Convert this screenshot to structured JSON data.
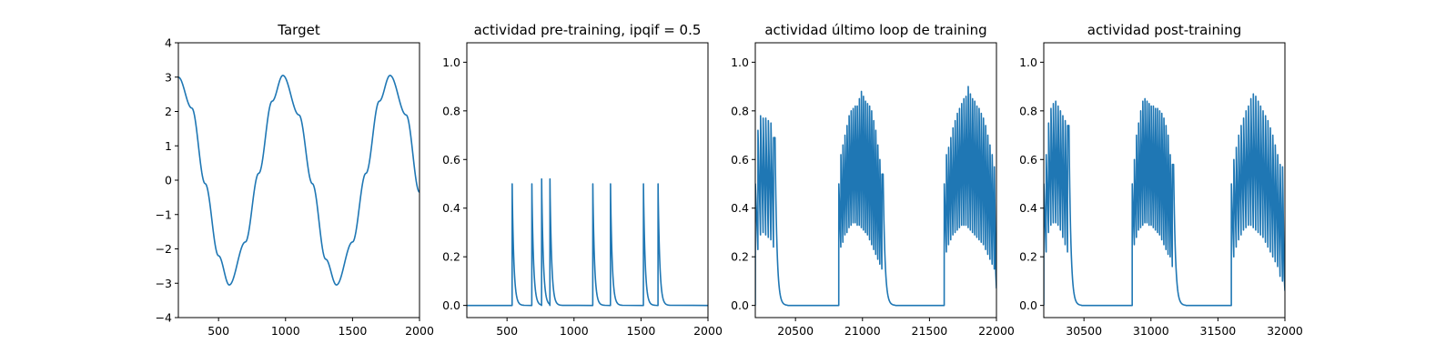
{
  "chart_data": [
    {
      "type": "line",
      "title": "Target",
      "xlabel": "",
      "ylabel": "",
      "xlim": [
        200,
        2000
      ],
      "ylim": [
        -4,
        4
      ],
      "xticks": [
        500,
        1000,
        1500,
        2000
      ],
      "xtick_labels": [
        "500",
        "1000",
        "1500",
        "2000"
      ],
      "yticks": [
        -4,
        -3,
        -2,
        -1,
        0,
        1,
        2,
        3,
        4
      ],
      "ytick_labels": [
        "−4",
        "−3",
        "−2",
        "−1",
        "0",
        "1",
        "2",
        "3",
        "4"
      ],
      "grid": false,
      "color": "#1f77b4",
      "series": [
        {
          "x": [
            200,
            300,
            400,
            500,
            580,
            700,
            800,
            900,
            980,
            1100,
            1200,
            1300,
            1380,
            1500,
            1600,
            1700,
            1780,
            1900,
            2000
          ],
          "y": [
            3.0,
            2.1,
            -0.1,
            -2.2,
            -3.05,
            -1.8,
            0.2,
            2.3,
            3.05,
            1.9,
            -0.1,
            -2.3,
            -3.05,
            -1.8,
            0.2,
            2.3,
            3.05,
            1.9,
            -0.35
          ]
        }
      ]
    },
    {
      "type": "line",
      "title": "actividad pre-training, ipqif = 0.5",
      "xlabel": "",
      "ylabel": "",
      "xlim": [
        200,
        2000
      ],
      "ylim": [
        -0.05,
        1.08
      ],
      "xticks": [
        500,
        1000,
        1500,
        2000
      ],
      "xtick_labels": [
        "500",
        "1000",
        "1500",
        "2000"
      ],
      "yticks": [
        0.0,
        0.2,
        0.4,
        0.6,
        0.8,
        1.0
      ],
      "ytick_labels": [
        "0.0",
        "0.2",
        "0.4",
        "0.6",
        "0.8",
        "1.0"
      ],
      "grid": false,
      "color": "#1f77b4",
      "spikes": [
        {
          "t": 538,
          "peak": 0.5
        },
        {
          "t": 685,
          "peak": 0.5
        },
        {
          "t": 758,
          "peak": 0.52
        },
        {
          "t": 820,
          "peak": 0.52
        },
        {
          "t": 1140,
          "peak": 0.5
        },
        {
          "t": 1272,
          "peak": 0.5
        },
        {
          "t": 1518,
          "peak": 0.5
        },
        {
          "t": 1627,
          "peak": 0.5
        }
      ]
    },
    {
      "type": "line",
      "title": "actividad último loop de training",
      "xlabel": "",
      "ylabel": "",
      "xlim": [
        20200,
        22000
      ],
      "ylim": [
        -0.05,
        1.08
      ],
      "xticks": [
        20500,
        21000,
        21500,
        22000
      ],
      "xtick_labels": [
        "20500",
        "21000",
        "21500",
        "22000"
      ],
      "yticks": [
        0.0,
        0.2,
        0.4,
        0.6,
        0.8,
        1.0
      ],
      "ytick_labels": [
        "0.0",
        "0.2",
        "0.4",
        "0.6",
        "0.8",
        "1.0"
      ],
      "grid": false,
      "color": "#1f77b4",
      "bursts": [
        {
          "start": 20200,
          "end": 20355,
          "peaks": [
            0.5,
            0.72,
            0.78,
            0.77,
            0.77,
            0.76,
            0.75,
            0.69
          ],
          "troughs": [
            0.0,
            0.23,
            0.29,
            0.3,
            0.29,
            0.28,
            0.27,
            0.24
          ]
        },
        {
          "start": 20823,
          "end": 21160,
          "peaks": [
            0.5,
            0.62,
            0.66,
            0.7,
            0.74,
            0.78,
            0.8,
            0.81,
            0.82,
            0.82,
            0.85,
            0.88,
            0.86,
            0.84,
            0.83,
            0.82,
            0.8,
            0.76,
            0.72,
            0.66,
            0.6,
            0.54
          ],
          "troughs": [
            0.22,
            0.24,
            0.26,
            0.29,
            0.3,
            0.32,
            0.33,
            0.34,
            0.34,
            0.33,
            0.33,
            0.32,
            0.31,
            0.3,
            0.29,
            0.27,
            0.25,
            0.23,
            0.21,
            0.19,
            0.17,
            0.15
          ]
        },
        {
          "start": 21610,
          "end": 22000,
          "peaks": [
            0.5,
            0.62,
            0.65,
            0.69,
            0.73,
            0.76,
            0.79,
            0.81,
            0.83,
            0.85,
            0.86,
            0.9,
            0.87,
            0.85,
            0.84,
            0.82,
            0.81,
            0.79,
            0.77,
            0.74,
            0.7,
            0.66,
            0.62,
            0.57
          ],
          "troughs": [
            0.2,
            0.22,
            0.25,
            0.27,
            0.29,
            0.3,
            0.31,
            0.32,
            0.33,
            0.33,
            0.33,
            0.32,
            0.31,
            0.3,
            0.29,
            0.28,
            0.27,
            0.26,
            0.25,
            0.23,
            0.21,
            0.19,
            0.17,
            0.15
          ]
        }
      ],
      "final_value": 0.07
    },
    {
      "type": "line",
      "title": "actividad post-training",
      "xlabel": "",
      "ylabel": "",
      "xlim": [
        30200,
        32000
      ],
      "ylim": [
        -0.05,
        1.08
      ],
      "xticks": [
        30500,
        31000,
        31500,
        32000
      ],
      "xtick_labels": [
        "30500",
        "31000",
        "31500",
        "32000"
      ],
      "yticks": [
        0.0,
        0.2,
        0.4,
        0.6,
        0.8,
        1.0
      ],
      "ytick_labels": [
        "0.0",
        "0.2",
        "0.4",
        "0.6",
        "0.8",
        "1.0"
      ],
      "grid": false,
      "color": "#1f77b4",
      "bursts": [
        {
          "start": 30200,
          "end": 30395,
          "peaks": [
            0.5,
            0.62,
            0.75,
            0.81,
            0.83,
            0.84,
            0.82,
            0.8,
            0.78,
            0.76,
            0.74
          ],
          "troughs": [
            0.0,
            0.22,
            0.3,
            0.33,
            0.34,
            0.34,
            0.33,
            0.31,
            0.28,
            0.25,
            0.22
          ]
        },
        {
          "start": 30860,
          "end": 31175,
          "peaks": [
            0.5,
            0.6,
            0.7,
            0.75,
            0.8,
            0.84,
            0.85,
            0.84,
            0.83,
            0.82,
            0.82,
            0.81,
            0.81,
            0.8,
            0.79,
            0.77,
            0.74,
            0.7,
            0.62,
            0.58
          ],
          "troughs": [
            0.22,
            0.25,
            0.28,
            0.31,
            0.32,
            0.33,
            0.34,
            0.34,
            0.33,
            0.33,
            0.32,
            0.31,
            0.3,
            0.29,
            0.27,
            0.25,
            0.23,
            0.21,
            0.2,
            0.16
          ]
        },
        {
          "start": 31600,
          "end": 32000,
          "peaks": [
            0.5,
            0.6,
            0.65,
            0.7,
            0.74,
            0.77,
            0.8,
            0.82,
            0.85,
            0.87,
            0.86,
            0.84,
            0.82,
            0.8,
            0.78,
            0.76,
            0.73,
            0.7,
            0.66,
            0.62,
            0.58,
            0.57
          ],
          "troughs": [
            0.12,
            0.2,
            0.24,
            0.27,
            0.29,
            0.31,
            0.32,
            0.33,
            0.33,
            0.32,
            0.31,
            0.3,
            0.29,
            0.28,
            0.26,
            0.24,
            0.22,
            0.2,
            0.18,
            0.16,
            0.12,
            0.1
          ]
        }
      ],
      "final_value": 0.06
    }
  ]
}
